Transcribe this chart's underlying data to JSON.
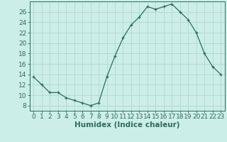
{
  "x": [
    0,
    1,
    2,
    3,
    4,
    5,
    6,
    7,
    8,
    9,
    10,
    11,
    12,
    13,
    14,
    15,
    16,
    17,
    18,
    19,
    20,
    21,
    22,
    23
  ],
  "y": [
    13.5,
    12.0,
    10.5,
    10.5,
    9.5,
    9.0,
    8.5,
    8.0,
    8.5,
    13.5,
    17.5,
    21.0,
    23.5,
    25.0,
    27.0,
    26.5,
    27.0,
    27.5,
    26.0,
    24.5,
    22.0,
    18.0,
    15.5,
    14.0
  ],
  "xlabel": "Humidex (Indice chaleur)",
  "ylim": [
    7,
    28
  ],
  "xlim": [
    -0.5,
    23.5
  ],
  "yticks": [
    8,
    10,
    12,
    14,
    16,
    18,
    20,
    22,
    24,
    26
  ],
  "xticks": [
    0,
    1,
    2,
    3,
    4,
    5,
    6,
    7,
    8,
    9,
    10,
    11,
    12,
    13,
    14,
    15,
    16,
    17,
    18,
    19,
    20,
    21,
    22,
    23
  ],
  "line_color": "#2d6b5e",
  "marker": "+",
  "bg_color": "#cceee8",
  "grid_color": "#b0d8d0",
  "axis_color": "#2d6b5e",
  "tick_fontsize": 6.5,
  "xlabel_fontsize": 7.5
}
